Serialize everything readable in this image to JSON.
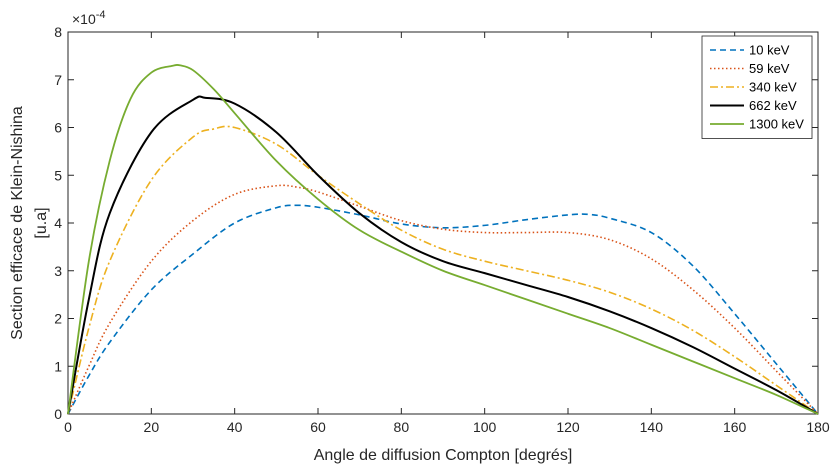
{
  "chart_data": {
    "type": "line",
    "title": "",
    "xlabel": "Angle de diffusion Compton [degrés]",
    "ylabel_line1": "Section efficace de Klein-Nishina",
    "ylabel_line2": "[u.a]",
    "exponent_base": "×10",
    "exponent_power": "-4",
    "xlim": [
      0,
      180
    ],
    "ylim": [
      0,
      8
    ],
    "xticks": [
      "0",
      "20",
      "40",
      "60",
      "80",
      "100",
      "120",
      "140",
      "160",
      "180"
    ],
    "yticks": [
      "0",
      "1",
      "2",
      "3",
      "4",
      "5",
      "6",
      "7",
      "8"
    ],
    "grid": false,
    "legend_position": "top-right",
    "series": [
      {
        "name": "10 keV",
        "color": "#0072BD",
        "dash": "dashed",
        "x": [
          0,
          5,
          10,
          20,
          30,
          40,
          50,
          55,
          60,
          70,
          80,
          90,
          100,
          110,
          120,
          125,
          130,
          140,
          150,
          160,
          170,
          180
        ],
        "y": [
          0,
          0.8,
          1.5,
          2.6,
          3.35,
          4.0,
          4.32,
          4.37,
          4.33,
          4.17,
          3.98,
          3.9,
          3.95,
          4.07,
          4.17,
          4.18,
          4.1,
          3.8,
          3.1,
          2.1,
          1.05,
          0
        ]
      },
      {
        "name": "59 keV",
        "color": "#D95319",
        "dash": "dotted",
        "x": [
          0,
          5,
          10,
          20,
          30,
          40,
          50,
          55,
          60,
          70,
          80,
          90,
          100,
          110,
          120,
          130,
          140,
          150,
          160,
          170,
          180
        ],
        "y": [
          0,
          1.0,
          1.9,
          3.2,
          4.05,
          4.6,
          4.78,
          4.75,
          4.65,
          4.35,
          4.05,
          3.87,
          3.8,
          3.8,
          3.8,
          3.65,
          3.25,
          2.6,
          1.8,
          0.9,
          0
        ]
      },
      {
        "name": "340 keV",
        "color": "#EDB120",
        "dash": "dashdot",
        "x": [
          0,
          5,
          10,
          20,
          30,
          35,
          40,
          50,
          60,
          70,
          80,
          90,
          100,
          110,
          120,
          130,
          140,
          150,
          160,
          170,
          180
        ],
        "y": [
          0,
          1.8,
          3.2,
          4.9,
          5.8,
          5.97,
          6.0,
          5.65,
          5.0,
          4.4,
          3.85,
          3.45,
          3.2,
          3.0,
          2.8,
          2.55,
          2.2,
          1.75,
          1.2,
          0.6,
          0
        ]
      },
      {
        "name": "662 keV",
        "color": "#000000",
        "dash": "solid",
        "x": [
          0,
          5,
          10,
          20,
          30,
          33,
          40,
          50,
          60,
          70,
          80,
          90,
          100,
          110,
          120,
          130,
          140,
          150,
          160,
          170,
          180
        ],
        "y": [
          0,
          2.4,
          4.2,
          5.9,
          6.58,
          6.62,
          6.5,
          5.9,
          5.0,
          4.2,
          3.6,
          3.2,
          2.95,
          2.7,
          2.45,
          2.15,
          1.8,
          1.4,
          0.95,
          0.5,
          0
        ]
      },
      {
        "name": "1300 keV",
        "color": "#77AC30",
        "dash": "solid",
        "x": [
          0,
          5,
          10,
          15,
          20,
          25,
          27,
          30,
          35,
          40,
          50,
          60,
          70,
          80,
          90,
          100,
          110,
          120,
          130,
          140,
          150,
          160,
          170,
          180
        ],
        "y": [
          0,
          3.2,
          5.3,
          6.6,
          7.15,
          7.29,
          7.3,
          7.2,
          6.8,
          6.3,
          5.3,
          4.5,
          3.85,
          3.4,
          3.0,
          2.7,
          2.4,
          2.1,
          1.8,
          1.45,
          1.1,
          0.75,
          0.4,
          0
        ]
      }
    ]
  }
}
